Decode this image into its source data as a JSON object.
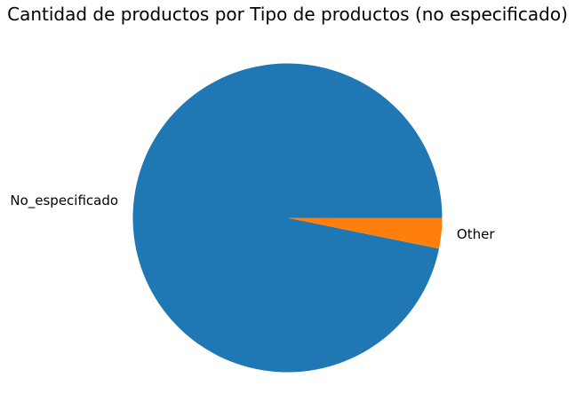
{
  "chart_data": {
    "type": "pie",
    "title": "Cantidad de productos por Tipo de productos (no especificado)",
    "labels": [
      "No_especificado",
      "Other"
    ],
    "values": [
      96.8,
      3.2
    ],
    "colors": [
      "#1f77b4",
      "#ff7f0e"
    ],
    "start_angle": 0,
    "direction": "counterclockwise",
    "legend": "none"
  }
}
